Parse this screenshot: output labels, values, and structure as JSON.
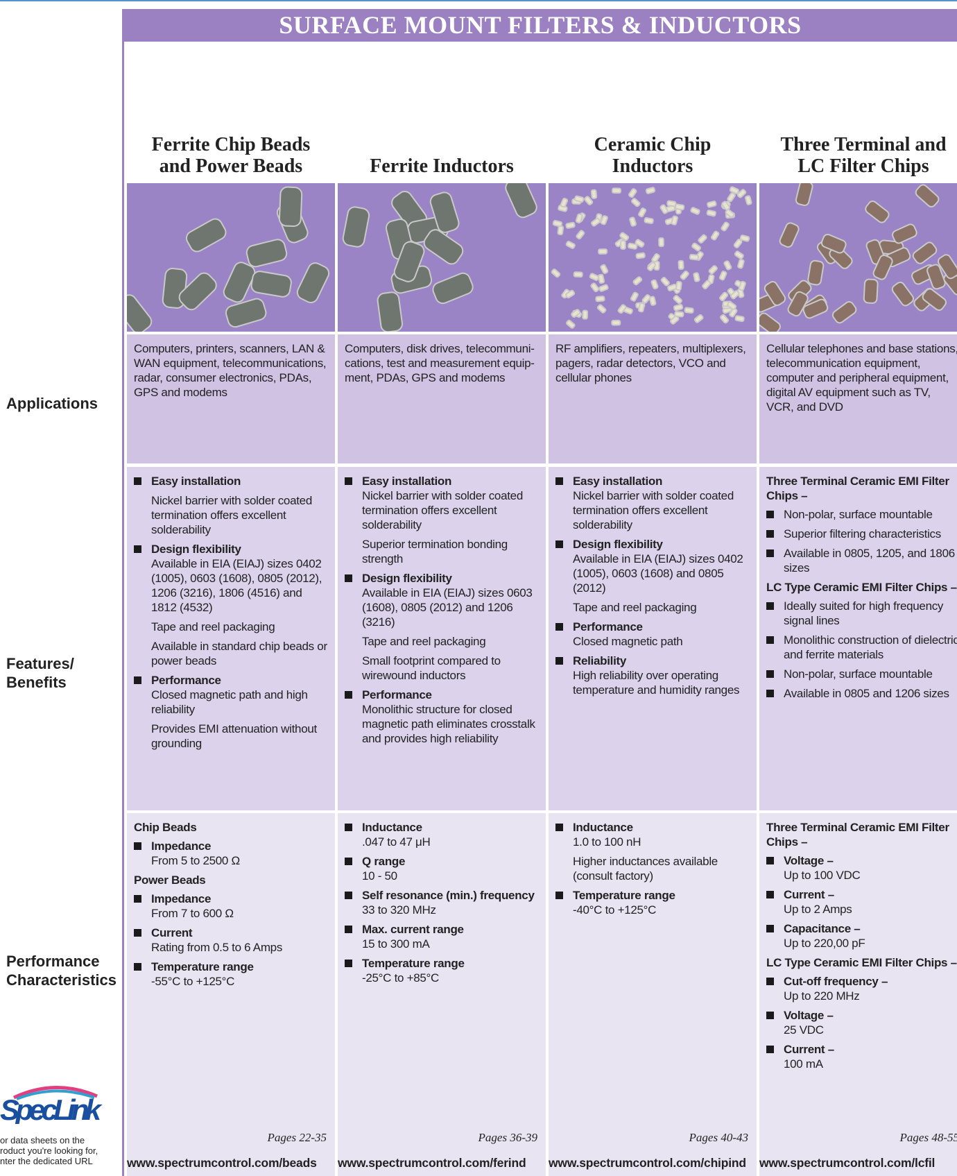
{
  "header": {
    "title": "SURFACE MOUNT FILTERS & INDUCTORS"
  },
  "row_labels": [
    "Applications",
    "Features/ Benefits",
    "Performance Characteristics"
  ],
  "sidebar": {
    "logo": "SpecLink",
    "note": [
      "or data sheets on the",
      "roduct you're looking for,",
      "nter the dedicated URL"
    ]
  },
  "columns": [
    {
      "heading": "Ferrite Chip Beads and Power Beads",
      "applications": "Computers, printers, scanners, LAN & WAN equipment, telecommunications, radar, consumer electronics, PDAs, GPS and modems",
      "features": [
        {
          "kind": "bullet",
          "title": "Easy installation"
        },
        {
          "kind": "para",
          "text": "Nickel barrier with solder coated termination offers excellent solderability"
        },
        {
          "kind": "bullet",
          "title": "Design flexibility",
          "text": "Available in EIA (EIAJ) sizes 0402 (1005), 0603 (1608), 0805 (2012), 1206 (3216), 1806 (4516) and 1812 (4532)"
        },
        {
          "kind": "para",
          "text": "Tape and reel packaging"
        },
        {
          "kind": "para",
          "text": "Available in standard chip beads or power beads"
        },
        {
          "kind": "bullet",
          "title": "Performance",
          "text": "Closed magnetic path and high reliability"
        },
        {
          "kind": "para",
          "text": "Provides EMI attenuation without grounding"
        }
      ],
      "performance": [
        {
          "kind": "group",
          "text": "Chip Beads"
        },
        {
          "kind": "bullet",
          "title": "Impedance",
          "text": "From 5 to 2500 Ω"
        },
        {
          "kind": "group",
          "text": "Power Beads"
        },
        {
          "kind": "bullet",
          "title": "Impedance",
          "text": "From 7 to 600 Ω"
        },
        {
          "kind": "bullet",
          "title": "Current",
          "text": "Rating from 0.5 to 6 Amps"
        },
        {
          "kind": "bullet",
          "title": "Temperature range",
          "text": "-55°C to +125°C"
        }
      ],
      "pages": "Pages 22-35",
      "url": "www.spectrumcontrol.com/beads"
    },
    {
      "heading": "Ferrite Inductors",
      "applications": "Computers, disk drives, telecommuni-cations, test and measurement equip-ment, PDAs, GPS and modems",
      "features": [
        {
          "kind": "bullet",
          "title": "Easy installation",
          "text": "Nickel barrier with solder coated termination offers excellent solderability"
        },
        {
          "kind": "para",
          "text": "Superior termination bonding strength"
        },
        {
          "kind": "bullet",
          "title": "Design flexibility",
          "text": "Available in EIA (EIAJ) sizes 0603 (1608), 0805 (2012) and 1206 (3216)"
        },
        {
          "kind": "para",
          "text": "Tape and reel packaging"
        },
        {
          "kind": "para",
          "text": "Small footprint compared to wirewound inductors"
        },
        {
          "kind": "bullet",
          "title": "Performance",
          "text": "Monolithic structure for closed magnetic path eliminates crosstalk and provides high reliability"
        }
      ],
      "performance": [
        {
          "kind": "bullet",
          "title": "Inductance",
          "text": ".047 to 47 μH"
        },
        {
          "kind": "bullet",
          "title": "Q range",
          "text": "10 - 50"
        },
        {
          "kind": "bullet",
          "title": "Self resonance (min.) frequency",
          "text": "33 to 320 MHz"
        },
        {
          "kind": "bullet",
          "title": "Max. current range",
          "text": "15 to 300 mA"
        },
        {
          "kind": "bullet",
          "title": "Temperature range",
          "text": "-25°C to +85°C"
        }
      ],
      "pages": "Pages 36-39",
      "url": "www.spectrumcontrol.com/ferind"
    },
    {
      "heading": "Ceramic Chip Inductors",
      "applications": "RF amplifiers, repeaters, multiplexers, pagers, radar detectors, VCO and cellular phones",
      "features": [
        {
          "kind": "bullet",
          "title": "Easy installation",
          "text": "Nickel barrier with solder coated termination offers excellent solderability"
        },
        {
          "kind": "bullet",
          "title": "Design flexibility",
          "text": "Available in EIA (EIAJ) sizes 0402 (1005), 0603 (1608) and 0805 (2012)"
        },
        {
          "kind": "para",
          "text": "Tape and reel packaging"
        },
        {
          "kind": "bullet",
          "title": "Performance",
          "text": "Closed magnetic path"
        },
        {
          "kind": "bullet",
          "title": "Reliability",
          "text": "High reliability over operating temperature and humidity ranges"
        }
      ],
      "performance": [
        {
          "kind": "bullet",
          "title": "Inductance",
          "text": "1.0 to 100 nH"
        },
        {
          "kind": "para",
          "text": "Higher inductances available (consult factory)"
        },
        {
          "kind": "bullet",
          "title": "Temperature range",
          "text": "-40°C to +125°C"
        }
      ],
      "pages": "Pages 40-43",
      "url": "www.spectrumcontrol.com/chipind"
    },
    {
      "heading": "Three Terminal and LC Filter Chips",
      "applications": "Cellular telephones and base stations, telecommunication equipment, computer and peripheral equipment, digital AV equipment such as TV, VCR, and DVD",
      "features": [
        {
          "kind": "group",
          "text": "Three Terminal Ceramic EMI Filter Chips –"
        },
        {
          "kind": "bullet",
          "text": "Non-polar, surface mountable"
        },
        {
          "kind": "bullet",
          "text": "Superior filtering characteristics"
        },
        {
          "kind": "bullet",
          "text": "Available in 0805, 1205, and 1806 sizes"
        },
        {
          "kind": "group",
          "text": "LC Type Ceramic EMI Filter Chips –"
        },
        {
          "kind": "bullet",
          "text": "Ideally suited for high frequency signal lines"
        },
        {
          "kind": "bullet",
          "text": "Monolithic construction of dielectric and ferrite materials"
        },
        {
          "kind": "bullet",
          "text": "Non-polar, surface mountable"
        },
        {
          "kind": "bullet",
          "text": "Available in 0805 and 1206 sizes"
        }
      ],
      "performance": [
        {
          "kind": "group",
          "text": "Three Terminal Ceramic EMI Filter Chips –"
        },
        {
          "kind": "bullet",
          "title": "Voltage –",
          "text": "Up to 100 VDC"
        },
        {
          "kind": "bullet",
          "title": "Current –",
          "text": "Up to 2 Amps"
        },
        {
          "kind": "bullet",
          "title": "Capacitance –",
          "text": "Up to 220,00 pF"
        },
        {
          "kind": "group",
          "text": "LC Type Ceramic EMI Filter Chips –"
        },
        {
          "kind": "bullet",
          "title": "Cut-off frequency –",
          "text": "Up to 220 MHz"
        },
        {
          "kind": "bullet",
          "title": "Voltage –",
          "text": "25 VDC"
        },
        {
          "kind": "bullet",
          "title": "Current –",
          "text": "100 mA"
        }
      ],
      "pages": "Pages 48-55",
      "url": "www.spectrumcontrol.com/lcfil"
    }
  ]
}
